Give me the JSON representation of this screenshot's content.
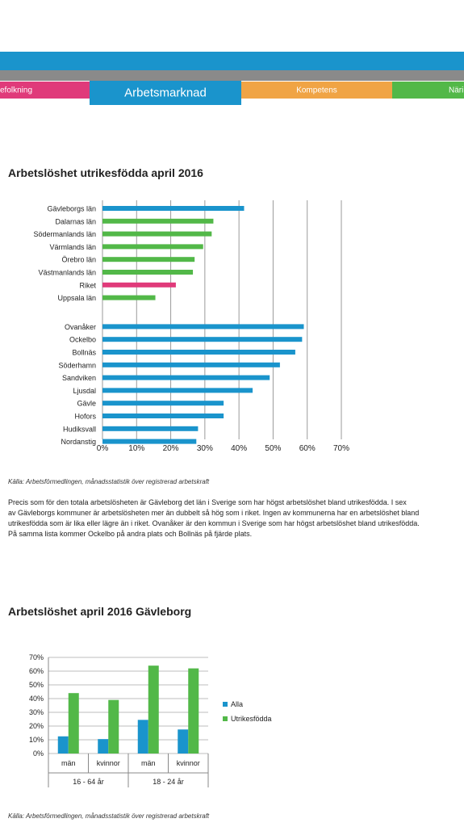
{
  "nav": {
    "tabs": [
      {
        "label": "efolkning",
        "color": "#e03a7a"
      },
      {
        "label": "Arbetsmarknad",
        "color": "#1a94cc",
        "active": true
      },
      {
        "label": "Kompetens",
        "color": "#f0a445"
      },
      {
        "label": "Näri",
        "color": "#52b848"
      }
    ]
  },
  "section1": {
    "title": "Arbetslöshet utrikesfödda april 2016",
    "source": "Källa: Arbetsförmedlingen, månadsstatistik över registrerad arbetskraft",
    "paragraph": "Precis som för den totala arbetslösheten är Gävleborg det län i Sverige som har högst arbetslöshet bland utrikesfödda. I sex\nav Gävleborgs kommuner är arbetslösheten mer än dubbelt så hög som i riket. Ingen av kommunerna har en arbetslöshet bland\nutrikesfödda som är lika eller lägre än i riket. Ovanåker är den kommun i Sverige som har högst arbetslöshet bland utrikesfödda.\nPå samma lista kommer Ockelbo på andra plats och Bollnäs på fjärde plats."
  },
  "section2": {
    "title": "Arbetslöshet april 2016 Gävleborg",
    "source": "Källa: Arbetsförmedlingen, månadsstatistik över registrerad arbetskraft"
  },
  "chart_data": [
    {
      "type": "bar",
      "orientation": "horizontal",
      "title": "",
      "xlim": [
        0,
        70
      ],
      "xticks": [
        "0%",
        "10%",
        "20%",
        "30%",
        "40%",
        "50%",
        "60%",
        "70%"
      ],
      "grid": true,
      "bars": [
        {
          "label": "Gävleborgs län",
          "value": 41.5,
          "color": "#1a94cc"
        },
        {
          "label": "Dalarnas län",
          "value": 32.5,
          "color": "#52b848"
        },
        {
          "label": "Södermanlands län",
          "value": 32,
          "color": "#52b848"
        },
        {
          "label": "Värmlands län",
          "value": 29.5,
          "color": "#52b848"
        },
        {
          "label": "Örebro län",
          "value": 27,
          "color": "#52b848"
        },
        {
          "label": "Västmanlands län",
          "value": 26.5,
          "color": "#52b848"
        },
        {
          "label": "Riket",
          "value": 21.5,
          "color": "#e03a7a"
        },
        {
          "label": "Uppsala län",
          "value": 15.5,
          "color": "#52b848"
        },
        {
          "label": "Ovanåker",
          "value": 59,
          "color": "#1a94cc"
        },
        {
          "label": "Ockelbo",
          "value": 58.5,
          "color": "#1a94cc"
        },
        {
          "label": "Bollnäs",
          "value": 56.5,
          "color": "#1a94cc"
        },
        {
          "label": "Söderhamn",
          "value": 52,
          "color": "#1a94cc"
        },
        {
          "label": "Sandviken",
          "value": 49,
          "color": "#1a94cc"
        },
        {
          "label": "Ljusdal",
          "value": 44,
          "color": "#1a94cc"
        },
        {
          "label": "Gävle",
          "value": 35.5,
          "color": "#1a94cc"
        },
        {
          "label": "Hofors",
          "value": 35.5,
          "color": "#1a94cc"
        },
        {
          "label": "Hudiksvall",
          "value": 28,
          "color": "#1a94cc"
        },
        {
          "label": "Nordanstig",
          "value": 27.5,
          "color": "#1a94cc"
        }
      ]
    },
    {
      "type": "bar",
      "title": "",
      "ylim": [
        0,
        70
      ],
      "yticks": [
        "0%",
        "10%",
        "20%",
        "30%",
        "40%",
        "50%",
        "60%",
        "70%"
      ],
      "categories": [
        "män",
        "kvinnor",
        "män",
        "kvinnor"
      ],
      "groups": [
        {
          "label": "16 - 64 år",
          "span": 2
        },
        {
          "label": "18 - 24 år",
          "span": 2
        }
      ],
      "series": [
        {
          "name": "Alla",
          "color": "#1a94cc",
          "values": [
            12.5,
            10.5,
            24.5,
            17.5
          ]
        },
        {
          "name": "Utrikesfödda",
          "color": "#52b848",
          "values": [
            44,
            39,
            64,
            62
          ]
        }
      ],
      "legend": "right",
      "grid": true
    }
  ]
}
